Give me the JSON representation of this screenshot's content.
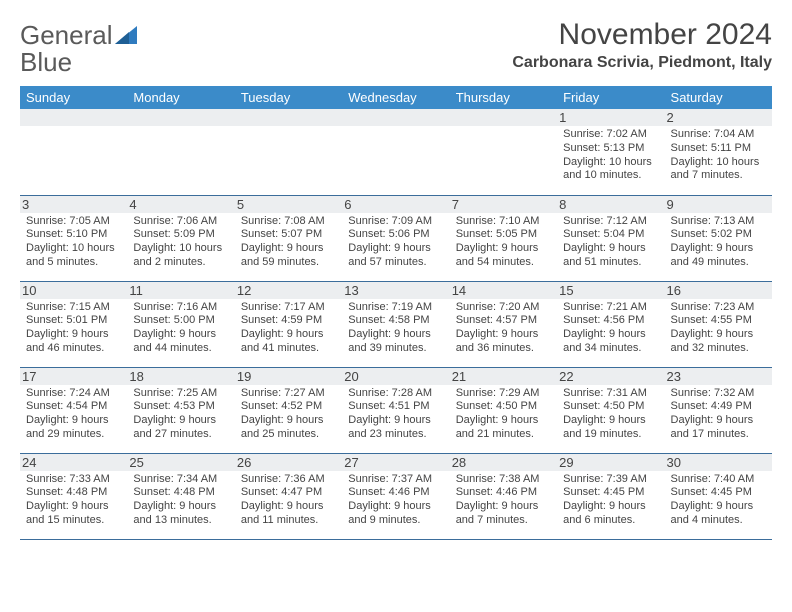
{
  "brand": {
    "part1": "General",
    "part2": "Blue"
  },
  "title": "November 2024",
  "location": "Carbonara Scrivia, Piedmont, Italy",
  "colors": {
    "header_bg": "#3b8bc9",
    "header_text": "#ffffff",
    "daynum_bg": "#eceef0",
    "cell_border": "#3b6d9b",
    "text": "#444444",
    "logo_gray": "#5a5a5a",
    "logo_blue": "#2f7bbf"
  },
  "weekdays": [
    "Sunday",
    "Monday",
    "Tuesday",
    "Wednesday",
    "Thursday",
    "Friday",
    "Saturday"
  ],
  "weeks": [
    [
      null,
      null,
      null,
      null,
      null,
      {
        "n": "1",
        "sunrise": "Sunrise: 7:02 AM",
        "sunset": "Sunset: 5:13 PM",
        "daylight": "Daylight: 10 hours and 10 minutes."
      },
      {
        "n": "2",
        "sunrise": "Sunrise: 7:04 AM",
        "sunset": "Sunset: 5:11 PM",
        "daylight": "Daylight: 10 hours and 7 minutes."
      }
    ],
    [
      {
        "n": "3",
        "sunrise": "Sunrise: 7:05 AM",
        "sunset": "Sunset: 5:10 PM",
        "daylight": "Daylight: 10 hours and 5 minutes."
      },
      {
        "n": "4",
        "sunrise": "Sunrise: 7:06 AM",
        "sunset": "Sunset: 5:09 PM",
        "daylight": "Daylight: 10 hours and 2 minutes."
      },
      {
        "n": "5",
        "sunrise": "Sunrise: 7:08 AM",
        "sunset": "Sunset: 5:07 PM",
        "daylight": "Daylight: 9 hours and 59 minutes."
      },
      {
        "n": "6",
        "sunrise": "Sunrise: 7:09 AM",
        "sunset": "Sunset: 5:06 PM",
        "daylight": "Daylight: 9 hours and 57 minutes."
      },
      {
        "n": "7",
        "sunrise": "Sunrise: 7:10 AM",
        "sunset": "Sunset: 5:05 PM",
        "daylight": "Daylight: 9 hours and 54 minutes."
      },
      {
        "n": "8",
        "sunrise": "Sunrise: 7:12 AM",
        "sunset": "Sunset: 5:04 PM",
        "daylight": "Daylight: 9 hours and 51 minutes."
      },
      {
        "n": "9",
        "sunrise": "Sunrise: 7:13 AM",
        "sunset": "Sunset: 5:02 PM",
        "daylight": "Daylight: 9 hours and 49 minutes."
      }
    ],
    [
      {
        "n": "10",
        "sunrise": "Sunrise: 7:15 AM",
        "sunset": "Sunset: 5:01 PM",
        "daylight": "Daylight: 9 hours and 46 minutes."
      },
      {
        "n": "11",
        "sunrise": "Sunrise: 7:16 AM",
        "sunset": "Sunset: 5:00 PM",
        "daylight": "Daylight: 9 hours and 44 minutes."
      },
      {
        "n": "12",
        "sunrise": "Sunrise: 7:17 AM",
        "sunset": "Sunset: 4:59 PM",
        "daylight": "Daylight: 9 hours and 41 minutes."
      },
      {
        "n": "13",
        "sunrise": "Sunrise: 7:19 AM",
        "sunset": "Sunset: 4:58 PM",
        "daylight": "Daylight: 9 hours and 39 minutes."
      },
      {
        "n": "14",
        "sunrise": "Sunrise: 7:20 AM",
        "sunset": "Sunset: 4:57 PM",
        "daylight": "Daylight: 9 hours and 36 minutes."
      },
      {
        "n": "15",
        "sunrise": "Sunrise: 7:21 AM",
        "sunset": "Sunset: 4:56 PM",
        "daylight": "Daylight: 9 hours and 34 minutes."
      },
      {
        "n": "16",
        "sunrise": "Sunrise: 7:23 AM",
        "sunset": "Sunset: 4:55 PM",
        "daylight": "Daylight: 9 hours and 32 minutes."
      }
    ],
    [
      {
        "n": "17",
        "sunrise": "Sunrise: 7:24 AM",
        "sunset": "Sunset: 4:54 PM",
        "daylight": "Daylight: 9 hours and 29 minutes."
      },
      {
        "n": "18",
        "sunrise": "Sunrise: 7:25 AM",
        "sunset": "Sunset: 4:53 PM",
        "daylight": "Daylight: 9 hours and 27 minutes."
      },
      {
        "n": "19",
        "sunrise": "Sunrise: 7:27 AM",
        "sunset": "Sunset: 4:52 PM",
        "daylight": "Daylight: 9 hours and 25 minutes."
      },
      {
        "n": "20",
        "sunrise": "Sunrise: 7:28 AM",
        "sunset": "Sunset: 4:51 PM",
        "daylight": "Daylight: 9 hours and 23 minutes."
      },
      {
        "n": "21",
        "sunrise": "Sunrise: 7:29 AM",
        "sunset": "Sunset: 4:50 PM",
        "daylight": "Daylight: 9 hours and 21 minutes."
      },
      {
        "n": "22",
        "sunrise": "Sunrise: 7:31 AM",
        "sunset": "Sunset: 4:50 PM",
        "daylight": "Daylight: 9 hours and 19 minutes."
      },
      {
        "n": "23",
        "sunrise": "Sunrise: 7:32 AM",
        "sunset": "Sunset: 4:49 PM",
        "daylight": "Daylight: 9 hours and 17 minutes."
      }
    ],
    [
      {
        "n": "24",
        "sunrise": "Sunrise: 7:33 AM",
        "sunset": "Sunset: 4:48 PM",
        "daylight": "Daylight: 9 hours and 15 minutes."
      },
      {
        "n": "25",
        "sunrise": "Sunrise: 7:34 AM",
        "sunset": "Sunset: 4:48 PM",
        "daylight": "Daylight: 9 hours and 13 minutes."
      },
      {
        "n": "26",
        "sunrise": "Sunrise: 7:36 AM",
        "sunset": "Sunset: 4:47 PM",
        "daylight": "Daylight: 9 hours and 11 minutes."
      },
      {
        "n": "27",
        "sunrise": "Sunrise: 7:37 AM",
        "sunset": "Sunset: 4:46 PM",
        "daylight": "Daylight: 9 hours and 9 minutes."
      },
      {
        "n": "28",
        "sunrise": "Sunrise: 7:38 AM",
        "sunset": "Sunset: 4:46 PM",
        "daylight": "Daylight: 9 hours and 7 minutes."
      },
      {
        "n": "29",
        "sunrise": "Sunrise: 7:39 AM",
        "sunset": "Sunset: 4:45 PM",
        "daylight": "Daylight: 9 hours and 6 minutes."
      },
      {
        "n": "30",
        "sunrise": "Sunrise: 7:40 AM",
        "sunset": "Sunset: 4:45 PM",
        "daylight": "Daylight: 9 hours and 4 minutes."
      }
    ]
  ]
}
